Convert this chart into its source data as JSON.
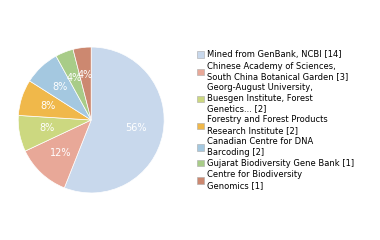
{
  "labels": [
    "Mined from GenBank, NCBI [14]",
    "Chinese Academy of Sciences,\nSouth China Botanical Garden [3]",
    "Georg-August University,\nBuesgen Institute, Forest\nGenetics... [2]",
    "Forestry and Forest Products\nResearch Institute [2]",
    "Canadian Centre for DNA\nBarcoding [2]",
    "Gujarat Biodiversity Gene Bank [1]",
    "Centre for Biodiversity\nGenomics [1]"
  ],
  "values": [
    14,
    3,
    2,
    2,
    2,
    1,
    1
  ],
  "colors": [
    "#c8d8ec",
    "#e8a898",
    "#ccd880",
    "#f0b84a",
    "#a4c8e0",
    "#a8cc88",
    "#cc8870"
  ],
  "pct_labels": [
    "56%",
    "12%",
    "8%",
    "8%",
    "8%",
    "4%",
    "4%"
  ],
  "text_color": "white",
  "pct_fontsize": 7,
  "legend_fontsize": 6,
  "startangle": 90
}
